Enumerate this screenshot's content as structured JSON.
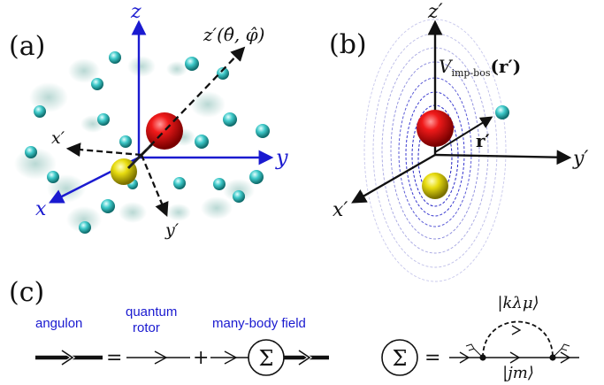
{
  "panel_a": {
    "label": "(a)",
    "axis_z": "z",
    "axis_y": "y",
    "axis_x": "x",
    "axis_zp": "z′",
    "axis_zp_args": "(θ̂, φ̂)",
    "axis_xp": "x′",
    "axis_yp": "y′",
    "colors": {
      "lab_axes": "#1a1ad0",
      "body_axes": "#000000",
      "molecule_top": "#dd0000",
      "molecule_bottom": "#e0d400",
      "bosons": "#3cc8c8"
    }
  },
  "panel_b": {
    "label": "(b)",
    "axis_zp": "z′",
    "axis_yp": "y′",
    "axis_xp": "x′",
    "potential_V": "V",
    "potential_sub": "imp-bos",
    "potential_arg": "(r′)",
    "vector_r": "r′",
    "colors": {
      "contours_inner": "#3a3ad8",
      "contours_outer": "#b8b8e8"
    }
  },
  "panel_c": {
    "label": "(c)",
    "angulon_label": "angulon",
    "rotor_label_1": "quantum",
    "rotor_label_2": "rotor",
    "field_label": "many-body field",
    "equals": "=",
    "plus": "+",
    "sigma": "Σ",
    "equals_2": "=",
    "loop_label": "|kλμ⟩",
    "line_label": "|jm⟩",
    "colors": {
      "labels": "#1a1ad0"
    }
  }
}
